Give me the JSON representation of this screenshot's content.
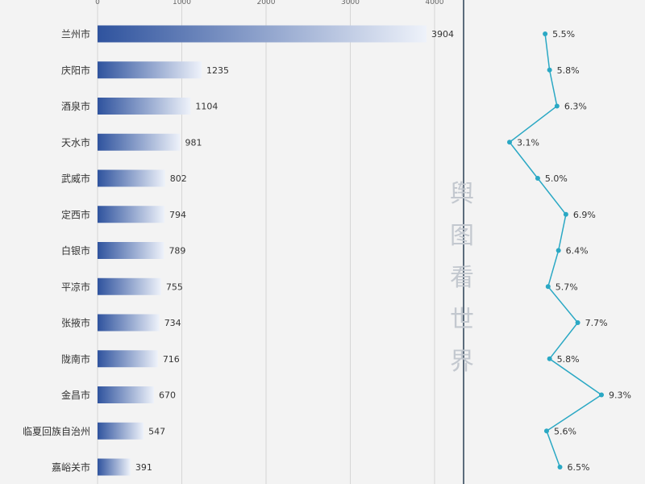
{
  "chart_data": {
    "type": "bar",
    "orientation": "horizontal",
    "categories": [
      "兰州市",
      "庆阳市",
      "酒泉市",
      "天水市",
      "武威市",
      "定西市",
      "白银市",
      "平凉市",
      "张掖市",
      "陇南市",
      "金昌市",
      "临夏回族自治州",
      "嘉峪关市",
      ""
    ],
    "values": [
      3904,
      1235,
      1104,
      981,
      802,
      794,
      789,
      755,
      734,
      716,
      670,
      547,
      391,
      null
    ],
    "value_labels": [
      "3904",
      "1235",
      "1104",
      "981",
      "802",
      "794",
      "789",
      "755",
      "734",
      "716",
      "670",
      "547",
      "391",
      ""
    ],
    "xticks": [
      0,
      1000,
      2000,
      3000,
      4000
    ],
    "xtick_labels": [
      "0",
      "1000",
      "2000",
      "3000",
      "4000"
    ],
    "xlim": [
      0,
      4000
    ],
    "growth_series": {
      "type": "line",
      "values": [
        5.5,
        5.8,
        6.3,
        3.1,
        5.0,
        6.9,
        6.4,
        5.7,
        7.7,
        5.8,
        9.3,
        5.6,
        6.5
      ],
      "labels": [
        "5.5%",
        "5.8%",
        "6.3%",
        "3.1%",
        "5.0%",
        "6.9%",
        "6.4%",
        "5.7%",
        "7.7%",
        "5.8%",
        "9.3%",
        "5.6%",
        "6.5%"
      ]
    },
    "grid": true,
    "legend": "none"
  },
  "watermark": [
    "舆",
    "图",
    "看",
    "世",
    "界"
  ],
  "colors": {
    "bar_dark": "#2f539e",
    "bar_light": "#eef2fa",
    "line": "#2aa8c4",
    "divider": "#2b3f55",
    "grid": "#d6d6d6",
    "background": "#f3f3f3"
  }
}
